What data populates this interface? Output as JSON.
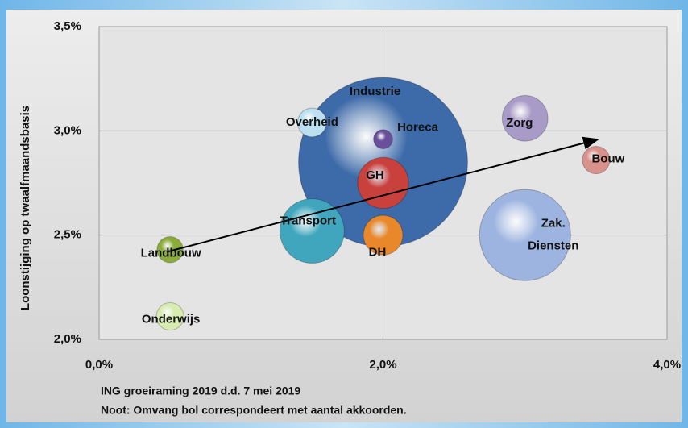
{
  "chart_data": {
    "type": "bubble",
    "y_label": "Loonstijging op twaalfmaandsbasis",
    "notes": [
      "ING groeiraming 2019 d.d. 7 mei 2019",
      "Noot: Omvang bol correspondeert met aantal akkoorden."
    ],
    "xlim": [
      0,
      4
    ],
    "ylim": [
      2.0,
      3.5
    ],
    "xticks": [
      {
        "value": 0,
        "label": "0,0%"
      },
      {
        "value": 2,
        "label": "2,0%"
      },
      {
        "value": 4,
        "label": "4,0%"
      }
    ],
    "yticks": [
      {
        "value": 2.0,
        "label": "2,0%"
      },
      {
        "value": 2.5,
        "label": "2,5%"
      },
      {
        "value": 3.0,
        "label": "3,0%"
      },
      {
        "value": 3.5,
        "label": "3,5%"
      }
    ],
    "grid": true,
    "series": [
      {
        "name": "Industrie",
        "color": "#3d6aa8",
        "x": 2.0,
        "y": 2.85,
        "size": 110
      },
      {
        "name": "Zak. Diensten",
        "color": "#9db4e0",
        "x": 3.0,
        "y": 2.5,
        "size": 32
      },
      {
        "name": "Transport",
        "color": "#3fa6bd",
        "x": 1.5,
        "y": 2.52,
        "size": 16
      },
      {
        "name": "GH",
        "color": "#c9413d",
        "x": 2.0,
        "y": 2.75,
        "size": 10
      },
      {
        "name": "Zorg",
        "color": "#a99bc8",
        "x": 3.0,
        "y": 3.06,
        "size": 8
      },
      {
        "name": "DH",
        "color": "#e8882a",
        "x": 2.0,
        "y": 2.5,
        "size": 6
      },
      {
        "name": "Overheid",
        "color": "#bde0f0",
        "x": 1.5,
        "y": 3.04,
        "size": 3.2
      },
      {
        "name": "Onderwijs",
        "color": "#d8ecb0",
        "x": 0.5,
        "y": 2.11,
        "size": 2.9
      },
      {
        "name": "Bouw",
        "color": "#d9918c",
        "x": 3.5,
        "y": 2.86,
        "size": 2.9
      },
      {
        "name": "Landbouw",
        "color": "#8aac3a",
        "x": 0.5,
        "y": 2.43,
        "size": 2.6
      },
      {
        "name": "Horeca",
        "color": "#6a4f9a",
        "x": 2.0,
        "y": 2.96,
        "size": 1.4
      }
    ]
  }
}
